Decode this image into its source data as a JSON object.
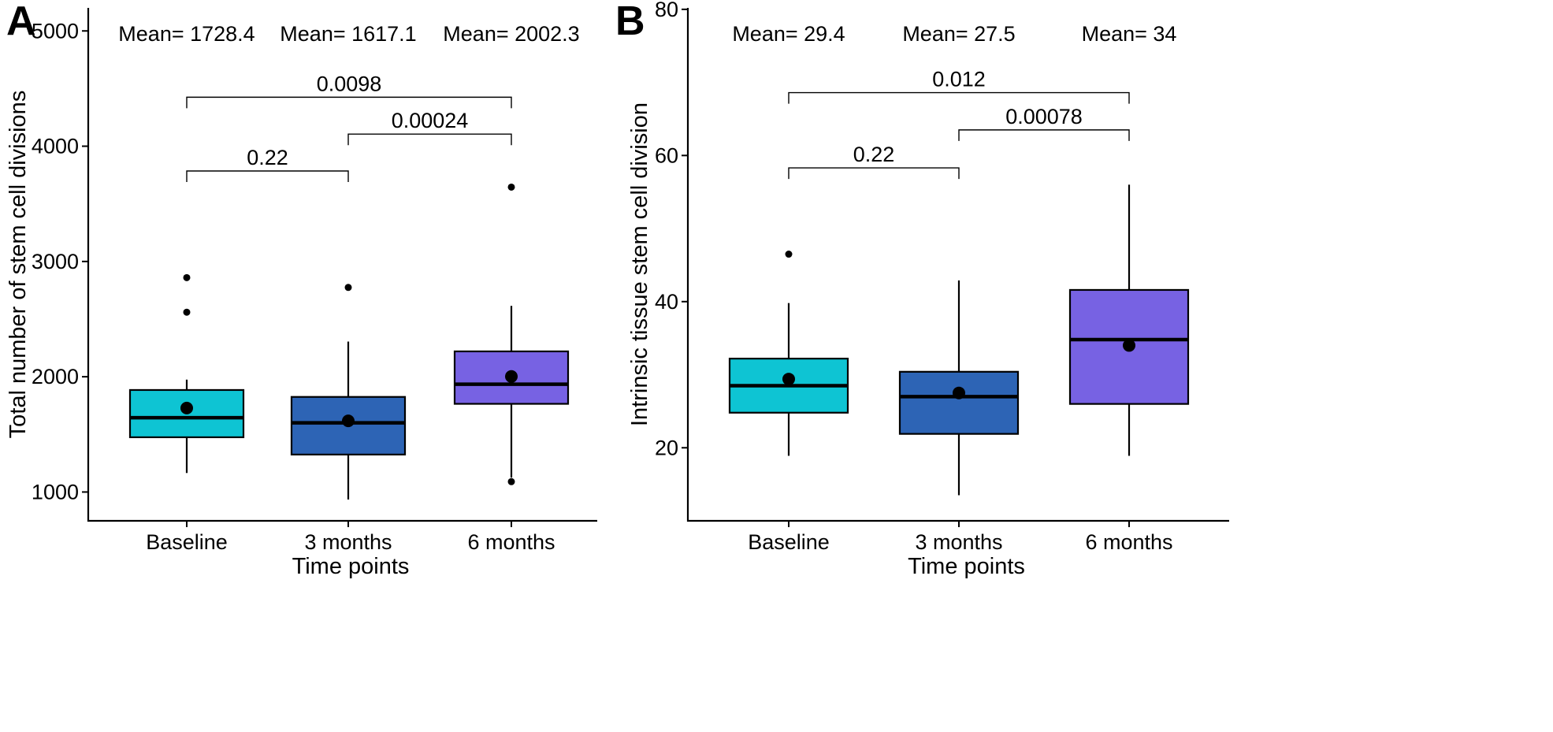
{
  "chart_data": [
    {
      "panel": "A",
      "type": "box",
      "xlabel": "Time points",
      "ylabel": "Total number of stem cell divisions",
      "ylim": [
        750,
        5200
      ],
      "yticks": [
        1000,
        2000,
        3000,
        4000,
        5000
      ],
      "categories": [
        "Baseline",
        "3 months",
        "6 months"
      ],
      "colors": [
        "#0EC4D3",
        "#2D64B5",
        "#7762E3"
      ],
      "boxes": [
        {
          "name": "Baseline",
          "q1": 1475,
          "median": 1645,
          "q3": 1885,
          "whisker_low": 1165,
          "whisker_high": 1975,
          "mean": 1728.4,
          "outliers": [
            2560,
            2860
          ]
        },
        {
          "name": "3 months",
          "q1": 1325,
          "median": 1600,
          "q3": 1825,
          "whisker_low": 935,
          "whisker_high": 2305,
          "mean": 1617.1,
          "outliers": [
            2775
          ]
        },
        {
          "name": "6 months",
          "q1": 1765,
          "median": 1935,
          "q3": 2220,
          "whisker_low": 1125,
          "whisker_high": 2615,
          "mean": 2002.3,
          "outliers": [
            1090,
            3645
          ]
        }
      ],
      "mean_labels": [
        "Mean= 1728.4",
        "Mean= 1617.1",
        "Mean= 2002.3"
      ],
      "comparisons": [
        {
          "from": 0,
          "to": 1,
          "label": "0.22",
          "y": 3785
        },
        {
          "from": 1,
          "to": 2,
          "label": "0.00024",
          "y": 4105
        },
        {
          "from": 0,
          "to": 2,
          "label": "0.0098",
          "y": 4425
        }
      ]
    },
    {
      "panel": "B",
      "type": "box",
      "xlabel": "Time points",
      "ylabel": "Intrinsic tissue stem cell division",
      "ylim": [
        10,
        80.2
      ],
      "yticks": [
        20,
        40,
        60,
        80
      ],
      "categories": [
        "Baseline",
        "3 months",
        "6 months"
      ],
      "colors": [
        "#0EC4D3",
        "#2D64B5",
        "#7762E3"
      ],
      "boxes": [
        {
          "name": "Baseline",
          "q1": 24.8,
          "median": 28.5,
          "q3": 32.2,
          "whisker_low": 18.9,
          "whisker_high": 39.8,
          "mean": 29.4,
          "outliers": [
            46.5
          ]
        },
        {
          "name": "3 months",
          "q1": 21.9,
          "median": 27.0,
          "q3": 30.4,
          "whisker_low": 13.5,
          "whisker_high": 42.9,
          "mean": 27.5,
          "outliers": []
        },
        {
          "name": "6 months",
          "q1": 26.0,
          "median": 34.8,
          "q3": 41.6,
          "whisker_low": 18.9,
          "whisker_high": 56.0,
          "mean": 34.0,
          "outliers": []
        }
      ],
      "mean_labels": [
        "Mean= 29.4",
        "Mean= 27.5",
        "Mean= 34"
      ],
      "comparisons": [
        {
          "from": 0,
          "to": 1,
          "label": "0.22",
          "y": 58.3
        },
        {
          "from": 1,
          "to": 2,
          "label": "0.00078",
          "y": 63.5
        },
        {
          "from": 0,
          "to": 2,
          "label": "0.012",
          "y": 68.6
        }
      ]
    }
  ]
}
